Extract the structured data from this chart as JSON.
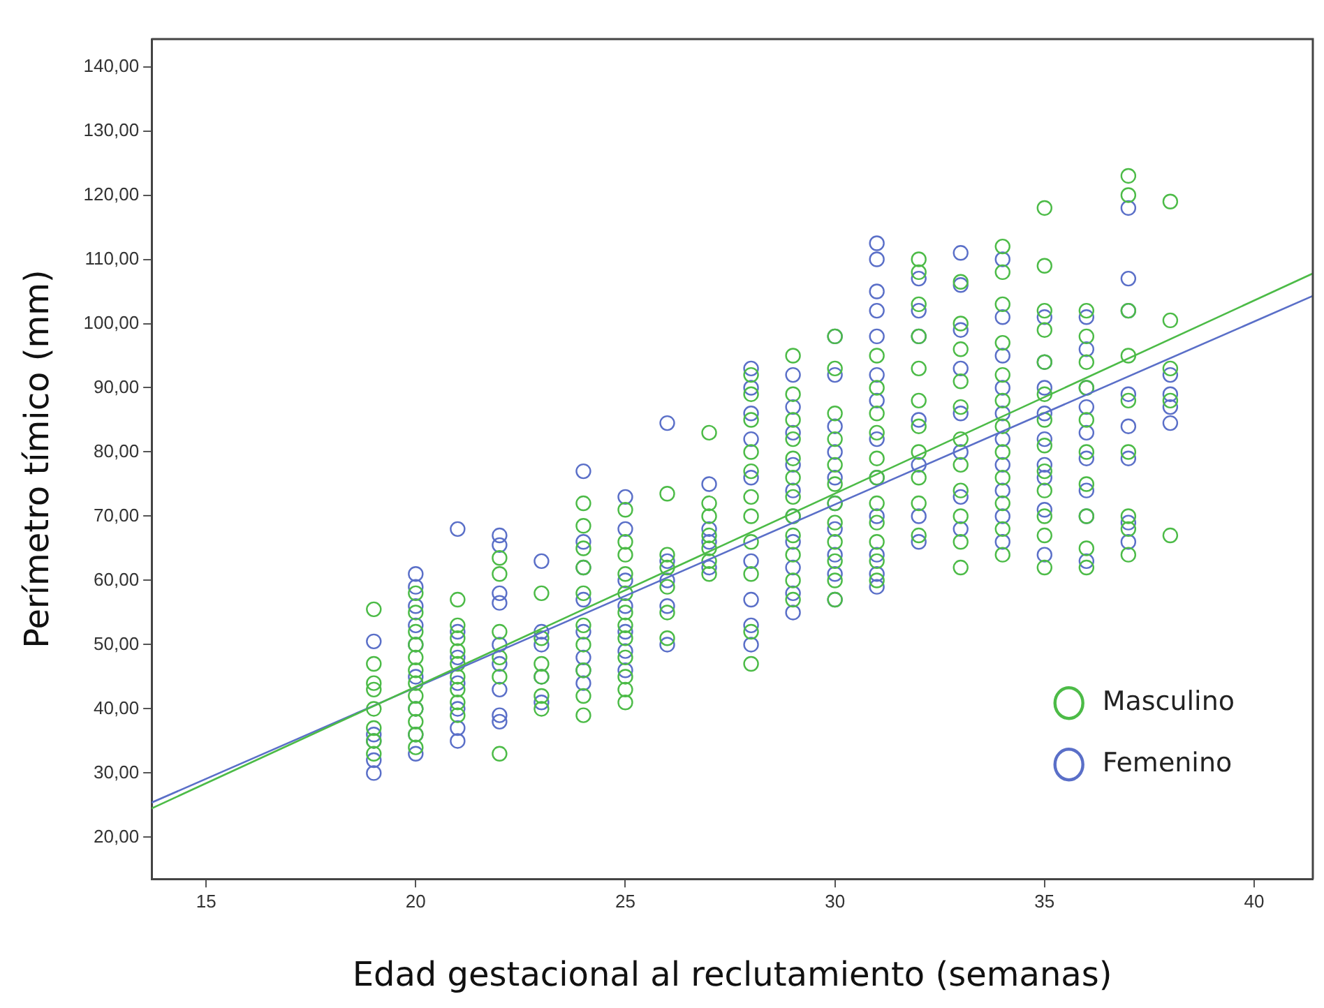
{
  "chart_data": {
    "type": "scatter",
    "xlabel": "Edad gestacional al reclutamiento (semanas)",
    "ylabel": "Perímetro tímico (mm)",
    "xlim": [
      13.7,
      41.4
    ],
    "ylim": [
      13.5,
      144.3
    ],
    "xticks": [
      15,
      20,
      25,
      30,
      35,
      40
    ],
    "yticks": [
      {
        "value": 20,
        "label": "20,00"
      },
      {
        "value": 30,
        "label": "30,00"
      },
      {
        "value": 40,
        "label": "40,00"
      },
      {
        "value": 50,
        "label": "50,00"
      },
      {
        "value": 60,
        "label": "60,00"
      },
      {
        "value": 70,
        "label": "70,00"
      },
      {
        "value": 80,
        "label": "80,00"
      },
      {
        "value": 90,
        "label": "90,00"
      },
      {
        "value": 100,
        "label": "100,00"
      },
      {
        "value": 110,
        "label": "110,00"
      },
      {
        "value": 120,
        "label": "120,00"
      },
      {
        "value": 130,
        "label": "130,00"
      },
      {
        "value": 140,
        "label": "140,00"
      }
    ],
    "grid": false,
    "legend": "bottom right",
    "marker": "circle",
    "series": [
      {
        "name": "Masculino",
        "color": "#4cbb47",
        "x": [
          19,
          19,
          19,
          19,
          19,
          19,
          19,
          19,
          20,
          20,
          20,
          20,
          20,
          20,
          20,
          20,
          20,
          20,
          20,
          20,
          21,
          21,
          21,
          21,
          21,
          21,
          21,
          21,
          21,
          22,
          22,
          22,
          22,
          22,
          22,
          23,
          23,
          23,
          23,
          23,
          23,
          24,
          24,
          24,
          24,
          24,
          24,
          24,
          24,
          24,
          24,
          25,
          25,
          25,
          25,
          25,
          25,
          25,
          25,
          25,
          25,
          25,
          25,
          26,
          26,
          26,
          26,
          26,
          26,
          27,
          27,
          27,
          27,
          27,
          27,
          27,
          28,
          28,
          28,
          28,
          28,
          28,
          28,
          28,
          28,
          28,
          28,
          29,
          29,
          29,
          29,
          29,
          29,
          29,
          29,
          29,
          29,
          29,
          29,
          30,
          30,
          30,
          30,
          30,
          30,
          30,
          30,
          30,
          30,
          30,
          30,
          31,
          31,
          31,
          31,
          31,
          31,
          31,
          31,
          31,
          31,
          31,
          32,
          32,
          32,
          32,
          32,
          32,
          32,
          32,
          32,
          32,
          32,
          33,
          33,
          33,
          33,
          33,
          33,
          33,
          33,
          33,
          33,
          33,
          34,
          34,
          34,
          34,
          34,
          34,
          34,
          34,
          34,
          34,
          34,
          34,
          35,
          35,
          35,
          35,
          35,
          35,
          35,
          35,
          35,
          35,
          35,
          35,
          35,
          36,
          36,
          36,
          36,
          36,
          36,
          36,
          36,
          36,
          36,
          37,
          37,
          37,
          37,
          37,
          37,
          37,
          37,
          37,
          38,
          38,
          38,
          38,
          38
        ],
        "values": [
          55.5,
          47,
          44,
          43,
          40,
          37,
          35,
          33,
          58,
          55,
          52,
          50,
          48,
          46,
          44,
          42,
          40,
          38,
          36,
          34,
          57,
          53,
          51,
          49,
          47,
          45,
          43,
          41,
          39,
          63.5,
          61,
          52,
          48,
          45,
          33,
          58,
          51,
          47,
          45,
          42,
          40,
          72,
          68.5,
          65,
          62,
          58,
          53,
          50,
          46,
          42,
          39,
          71,
          66,
          64,
          61,
          58,
          55,
          53,
          51,
          48,
          45,
          43,
          41,
          73.5,
          64,
          62,
          59,
          55,
          51,
          83,
          72,
          70,
          67,
          65,
          63,
          61,
          92,
          89,
          85,
          80,
          77,
          73,
          70,
          66,
          61,
          52,
          47,
          95,
          89,
          85,
          82,
          79,
          76,
          73,
          70,
          67,
          64,
          60,
          57,
          98,
          93,
          86,
          82,
          78,
          75,
          72,
          69,
          66,
          63,
          60,
          57,
          95,
          90,
          86,
          83,
          79,
          76,
          72,
          69,
          66,
          63,
          60,
          110,
          108,
          103,
          98,
          93,
          88,
          84,
          80,
          76,
          72,
          67,
          106.5,
          100,
          96,
          91,
          87,
          82,
          78,
          74,
          70,
          66,
          62,
          112,
          108,
          103,
          97,
          92,
          88,
          84,
          80,
          76,
          72,
          68,
          64,
          118,
          109,
          102,
          99,
          94,
          89,
          85,
          81,
          77,
          74,
          70,
          67,
          62,
          102,
          98,
          94,
          90,
          85,
          80,
          75,
          70,
          65,
          62,
          123,
          120,
          102,
          95,
          88,
          80,
          70,
          68,
          64,
          119,
          100.5,
          93,
          88,
          67
        ]
      },
      {
        "name": "Femenino",
        "color": "#5a6fc8",
        "x": [
          19,
          19,
          19,
          19,
          19,
          20,
          20,
          20,
          20,
          20,
          20,
          20,
          20,
          20,
          21,
          21,
          21,
          21,
          21,
          21,
          21,
          22,
          22,
          22,
          22,
          22,
          22,
          22,
          22,
          22,
          23,
          23,
          23,
          23,
          23,
          24,
          24,
          24,
          24,
          24,
          24,
          24,
          24,
          25,
          25,
          25,
          25,
          25,
          25,
          25,
          26,
          26,
          26,
          26,
          26,
          27,
          27,
          27,
          27,
          28,
          28,
          28,
          28,
          28,
          28,
          28,
          28,
          28,
          29,
          29,
          29,
          29,
          29,
          29,
          29,
          29,
          29,
          29,
          30,
          30,
          30,
          30,
          30,
          30,
          30,
          30,
          30,
          30,
          31,
          31,
          31,
          31,
          31,
          31,
          31,
          31,
          31,
          31,
          31,
          31,
          31,
          32,
          32,
          32,
          32,
          32,
          32,
          32,
          33,
          33,
          33,
          33,
          33,
          33,
          33,
          33,
          34,
          34,
          34,
          34,
          34,
          34,
          34,
          34,
          34,
          34,
          35,
          35,
          35,
          35,
          35,
          35,
          35,
          35,
          35,
          36,
          36,
          36,
          36,
          36,
          36,
          36,
          36,
          36,
          37,
          37,
          37,
          37,
          37,
          37,
          37,
          37,
          38,
          38,
          38,
          38
        ],
        "values": [
          50.5,
          36,
          35,
          32,
          30,
          61,
          59,
          56,
          53,
          50,
          45,
          40,
          36,
          33,
          68,
          52,
          48,
          44,
          40,
          37,
          35,
          67,
          65.5,
          58,
          56.5,
          50,
          47,
          43,
          39,
          38,
          63,
          52,
          50,
          45,
          41,
          77,
          66,
          62,
          57,
          52,
          48,
          46,
          44,
          73,
          68,
          60,
          56,
          52,
          49,
          46,
          84.5,
          63,
          60,
          56,
          50,
          75,
          68,
          66,
          62,
          93,
          90,
          86,
          82,
          76,
          63,
          57,
          53,
          50,
          92,
          87,
          83,
          78,
          74,
          70,
          66,
          62,
          58,
          55,
          98,
          92,
          84,
          80,
          76,
          72,
          68,
          64,
          61,
          57,
          112.5,
          110,
          105,
          102,
          98,
          92,
          88,
          82,
          76,
          70,
          64,
          61,
          59,
          107,
          102,
          98,
          85,
          78,
          70,
          66,
          111,
          106,
          99,
          93,
          86,
          80,
          73,
          68,
          110,
          101,
          95,
          90,
          86,
          82,
          78,
          74,
          70,
          66,
          101,
          94,
          90,
          86,
          82,
          78,
          76,
          71,
          64,
          101,
          96,
          90,
          87,
          83,
          79,
          74,
          70,
          63,
          118,
          107,
          102,
          89,
          84,
          79,
          69,
          66,
          92,
          89,
          87,
          84.5
        ]
      },
      {
        "type": "line",
        "marker": "none",
        "color": "#4cbb47",
        "x": [
          13.7,
          41.4
        ],
        "values": [
          24.5,
          107.8
        ]
      },
      {
        "type": "line",
        "marker": "none",
        "color": "#5a6fc8",
        "x": [
          13.7,
          41.4
        ],
        "values": [
          25.4,
          104.3
        ]
      }
    ]
  }
}
